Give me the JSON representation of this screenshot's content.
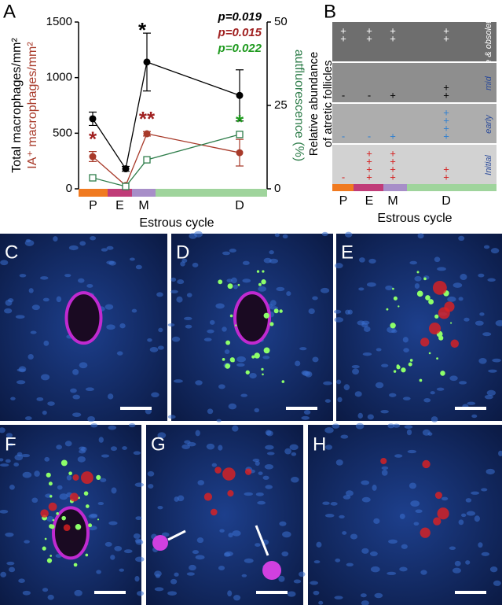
{
  "panel_labels": [
    "A",
    "B",
    "C",
    "D",
    "E",
    "F",
    "G",
    "H"
  ],
  "chart_data": {
    "type": "line",
    "categories": [
      "P",
      "E",
      "M",
      "D"
    ],
    "category_colors": [
      "#f07a20",
      "#c03c78",
      "#a78ec8",
      "#9fd49c"
    ],
    "x_label": "Estrous cycle",
    "ylim": [
      0,
      1500
    ],
    "yticks": [
      0,
      500,
      1000,
      1500
    ],
    "y2lim": [
      0,
      50
    ],
    "y2ticks": [
      0,
      25,
      50
    ],
    "series": [
      {
        "name": "Total macrophages/mm²",
        "color": "#000000",
        "marker": "dot",
        "values": [
          630,
          180,
          1140,
          840
        ],
        "errors": [
          60,
          22,
          260,
          230
        ]
      },
      {
        "name": "IA⁺ macrophages/mm²",
        "color": "#a83a2a",
        "marker": "dot",
        "values": [
          290,
          30,
          495,
          325
        ],
        "errors": [
          45,
          null,
          20,
          120
        ]
      },
      {
        "name": "autfluorescence (%)",
        "color": "#2e7d4a",
        "marker": "square",
        "axis": "y2",
        "values": [
          3.3,
          0.7,
          8.7,
          16.3
        ],
        "errors": [
          null,
          null,
          null,
          null
        ]
      }
    ],
    "annotations": [
      {
        "text": "p=0.019",
        "color": "#000000"
      },
      {
        "text": "p=0.015",
        "color": "#a02020"
      },
      {
        "text": "p=0.022",
        "color": "#1f9a1f"
      }
    ],
    "significance": [
      {
        "text": "*",
        "series": 0,
        "category": "M",
        "color": "#000000"
      },
      {
        "text": "*",
        "series": 1,
        "category": "P",
        "color": "#a02020"
      },
      {
        "text": "**",
        "series": 1,
        "category": "M",
        "color": "#a02020"
      },
      {
        "text": "*",
        "series": 2,
        "category": "D",
        "color": "#1f9a1f"
      }
    ]
  },
  "panel_b": {
    "y_label": [
      "Relative abundance",
      "of atretic follicles"
    ],
    "x_label": "Estrous cycle",
    "categories": [
      "P",
      "E",
      "M",
      "D"
    ],
    "rows": [
      {
        "label": "late & obsoleted",
        "background": "#6e6e6e",
        "symbol_color": "#ffffff",
        "cells": [
          [
            "+",
            "+"
          ],
          [
            "+",
            "+"
          ],
          [
            "+",
            "+"
          ],
          [
            "+",
            "+"
          ]
        ]
      },
      {
        "label": "mid",
        "background": "#8e8e8e",
        "symbol_color": "#000000",
        "cells": [
          [
            "-"
          ],
          [
            "-"
          ],
          [
            "+"
          ],
          [
            "+",
            "+"
          ]
        ]
      },
      {
        "label": "early",
        "background": "#adadad",
        "symbol_color": "#2f7fd0",
        "cells": [
          [
            "-"
          ],
          [
            "-"
          ],
          [
            "+"
          ],
          [
            "+",
            "+",
            "+",
            "+"
          ]
        ]
      },
      {
        "label": "Initial",
        "background": "#d2d2d2",
        "symbol_color": "#d42020",
        "cells": [
          [
            "-"
          ],
          [
            "+",
            "+",
            "+",
            "+"
          ],
          [
            "+",
            "+",
            "+",
            "+"
          ],
          [
            "+",
            "+"
          ]
        ]
      }
    ]
  }
}
